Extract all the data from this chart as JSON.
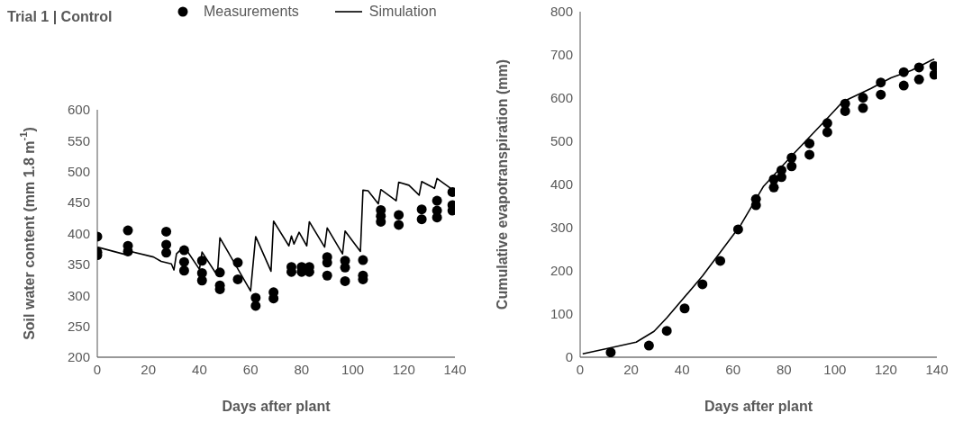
{
  "chart_data": [
    {
      "type": "scatter",
      "title": "Trial 1 | Control",
      "xlabel": "Days after plant",
      "ylabel": "Soil water content (mm 1.8 m$^{-1}$)",
      "xlim": [
        0,
        140
      ],
      "xticks": [
        0,
        20,
        40,
        60,
        80,
        100,
        120,
        140
      ],
      "ylim": [
        200,
        600
      ],
      "yticks": [
        200,
        250,
        300,
        350,
        400,
        450,
        500,
        550,
        600
      ],
      "grid": false,
      "legend": "top",
      "series": [
        {
          "name": "Measurements",
          "marker": "circle",
          "color": "#000000",
          "x": [
            0,
            0,
            0,
            12,
            12,
            12,
            27,
            27,
            27,
            34,
            34,
            34,
            41,
            41,
            41,
            48,
            48,
            48,
            55,
            55,
            62,
            62,
            69,
            69,
            76,
            76,
            80,
            80,
            83,
            83,
            90,
            90,
            90,
            97,
            97,
            97,
            104,
            104,
            104,
            111,
            111,
            111,
            118,
            118,
            127,
            127,
            133,
            133,
            133,
            139,
            139,
            139
          ],
          "values": [
            395,
            370,
            365,
            405,
            380,
            371,
            403,
            382,
            369,
            373,
            354,
            340,
            356,
            336,
            324,
            337,
            316,
            310,
            353,
            326,
            296,
            283,
            305,
            295,
            346,
            338,
            346,
            338,
            346,
            338,
            362,
            353,
            332,
            356,
            345,
            323,
            357,
            332,
            326,
            438,
            428,
            419,
            430,
            414,
            439,
            423,
            453,
            437,
            426,
            467,
            446,
            437
          ]
        },
        {
          "name": "Simulation",
          "type": "line",
          "marker": "none",
          "line_style": "solid",
          "color": "#000000",
          "x": [
            0,
            11,
            12,
            22,
            25,
            29,
            30,
            31,
            34,
            40,
            41,
            47,
            48,
            60,
            62,
            68,
            69,
            75,
            76,
            77,
            79,
            82,
            83,
            89,
            90,
            96,
            97,
            103,
            104,
            106,
            110,
            111,
            114,
            117,
            118,
            122,
            126,
            127,
            132,
            133,
            138,
            139
          ],
          "values": [
            378,
            366,
            372,
            362,
            355,
            351,
            341,
            367,
            379,
            342,
            370,
            332,
            393,
            307,
            395,
            339,
            420,
            380,
            396,
            383,
            402,
            380,
            419,
            378,
            409,
            367,
            404,
            371,
            470,
            469,
            448,
            471,
            462,
            453,
            483,
            478,
            462,
            484,
            473,
            489,
            474,
            470
          ]
        }
      ]
    },
    {
      "type": "scatter",
      "xlabel": "Days after plant",
      "ylabel": "Cumulative evapotranspiration (mm)",
      "xlim": [
        0,
        140
      ],
      "xticks": [
        0,
        20,
        40,
        60,
        80,
        100,
        120,
        140
      ],
      "ylim": [
        0,
        800
      ],
      "yticks": [
        0,
        100,
        200,
        300,
        400,
        500,
        600,
        700,
        800
      ],
      "grid": false,
      "series": [
        {
          "marker": "circle",
          "color": "#000000",
          "x": [
            12,
            27,
            34,
            41,
            48,
            55,
            62,
            69,
            69,
            76,
            76,
            79,
            79,
            83,
            83,
            90,
            90,
            97,
            97,
            104,
            104,
            111,
            111,
            118,
            118,
            127,
            127,
            133,
            133,
            139,
            139
          ],
          "values": [
            11,
            27,
            61,
            113,
            169,
            223,
            296,
            366,
            352,
            412,
            393,
            433,
            417,
            462,
            442,
            495,
            469,
            542,
            521,
            587,
            570,
            601,
            577,
            636,
            608,
            660,
            629,
            671,
            643,
            674,
            654
          ]
        },
        {
          "type": "line",
          "marker": "none",
          "line_style": "solid",
          "color": "#000000",
          "x": [
            1,
            12,
            22,
            29,
            34,
            48,
            63,
            72,
            83,
            97,
            103,
            114,
            122,
            130,
            138,
            139
          ],
          "values": [
            8,
            22,
            35,
            60,
            91,
            188,
            306,
            396,
            466,
            553,
            591,
            622,
            647,
            664,
            688,
            690
          ]
        }
      ]
    }
  ]
}
